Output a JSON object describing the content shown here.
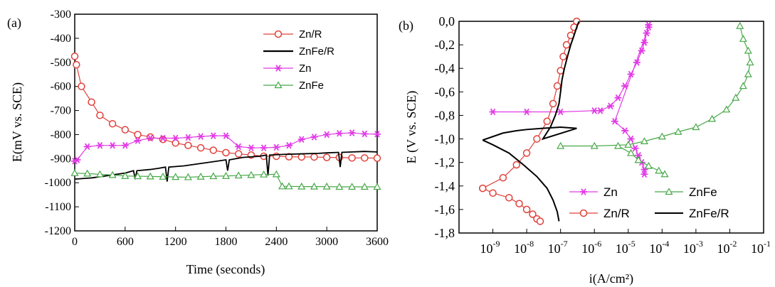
{
  "chart_data": [
    {
      "type": "line",
      "panel_label": "(a)",
      "xlabel": "Time (seconds)",
      "ylabel": "E(mV vs. SCE)",
      "xlim": [
        0,
        3600
      ],
      "ylim": [
        -1200,
        -300
      ],
      "xticks": [
        "0",
        "600",
        "1200",
        "1800",
        "2400",
        "3000",
        "3600"
      ],
      "yticks": [
        "-300",
        "-400",
        "-500",
        "-600",
        "-700",
        "-800",
        "-900",
        "-1000",
        "-1100",
        "-1200"
      ],
      "legend_position": "top-right",
      "series": [
        {
          "name": "Zn/R",
          "color": "#e0403a",
          "marker": "circle",
          "x": [
            0,
            20,
            80,
            200,
            300,
            450,
            600,
            750,
            900,
            1050,
            1200,
            1350,
            1500,
            1650,
            1800,
            1950,
            2100,
            2250,
            2400,
            2550,
            2700,
            2850,
            3000,
            3150,
            3300,
            3450,
            3600
          ],
          "y": [
            -475,
            -510,
            -600,
            -665,
            -720,
            -755,
            -780,
            -800,
            -810,
            -820,
            -835,
            -845,
            -855,
            -865,
            -875,
            -880,
            -885,
            -890,
            -890,
            -892,
            -893,
            -893,
            -895,
            -895,
            -897,
            -897,
            -898
          ]
        },
        {
          "name": "ZnFe/R",
          "color": "#000000",
          "marker": "none",
          "x": [
            0,
            200,
            400,
            600,
            700,
            720,
            740,
            900,
            1000,
            1080,
            1100,
            1120,
            1300,
            1500,
            1700,
            1800,
            1820,
            1840,
            2000,
            2200,
            2280,
            2300,
            2320,
            2500,
            2700,
            2900,
            3000,
            3140,
            3160,
            3180,
            3300,
            3450,
            3600
          ],
          "y": [
            -985,
            -980,
            -970,
            -960,
            -950,
            -985,
            -950,
            -945,
            -940,
            -935,
            -995,
            -935,
            -930,
            -920,
            -910,
            -905,
            -950,
            -905,
            -895,
            -890,
            -885,
            -970,
            -885,
            -882,
            -880,
            -878,
            -876,
            -874,
            -935,
            -874,
            -872,
            -870,
            -872
          ]
        },
        {
          "name": "Zn",
          "color": "#e23ae6",
          "marker": "asterisk",
          "x": [
            0,
            30,
            150,
            300,
            450,
            600,
            750,
            900,
            1050,
            1200,
            1350,
            1500,
            1650,
            1800,
            1950,
            2100,
            2250,
            2400,
            2550,
            2700,
            2850,
            3000,
            3150,
            3300,
            3450,
            3600
          ],
          "y": [
            -910,
            -905,
            -850,
            -845,
            -845,
            -845,
            -825,
            -815,
            -815,
            -815,
            -812,
            -808,
            -805,
            -805,
            -850,
            -855,
            -855,
            -853,
            -845,
            -820,
            -810,
            -800,
            -795,
            -793,
            -797,
            -798
          ]
        },
        {
          "name": "ZnFe",
          "color": "#46a847",
          "marker": "triangle",
          "x": [
            0,
            150,
            300,
            450,
            600,
            750,
            900,
            1050,
            1200,
            1350,
            1500,
            1650,
            1800,
            1950,
            2100,
            2250,
            2400,
            2470,
            2550,
            2700,
            2850,
            3000,
            3150,
            3300,
            3450,
            3600
          ],
          "y": [
            -960,
            -962,
            -965,
            -968,
            -972,
            -973,
            -974,
            -975,
            -976,
            -977,
            -975,
            -973,
            -972,
            -970,
            -968,
            -966,
            -965,
            -1015,
            -1015,
            -1016,
            -1016,
            -1016,
            -1017,
            -1017,
            -1017,
            -1017
          ]
        }
      ]
    },
    {
      "type": "line",
      "panel_label": "(b)",
      "xlabel": "i(A/cm²)",
      "ylabel": "E (V vs. SCE)",
      "xscale": "log",
      "xlim": [
        1e-10,
        0.1
      ],
      "ylim": [
        -1.8,
        0.0
      ],
      "xtick_exponents": [
        "-9",
        "-8",
        "-7",
        "-6",
        "-5",
        "-4",
        "-3",
        "-2",
        "-1"
      ],
      "xtick_base": "10",
      "yticks": [
        "0,0",
        "-0,2",
        "-0,4",
        "-0,6",
        "-0,8",
        "-1,0",
        "-1,2",
        "-1,4",
        "-1,6",
        "-1,8"
      ],
      "legend_position": "bottom",
      "series": [
        {
          "name": "Zn",
          "color": "#e23ae6",
          "marker": "asterisk",
          "x": [
            1e-09,
            1e-08,
            1e-07,
            1e-06,
            1.5e-06,
            3e-06,
            5e-06,
            8e-06,
            1.2e-05,
            1.8e-05,
            2.5e-05,
            3e-05,
            3.5e-05,
            4e-05,
            4e-05,
            4e-06,
            8e-06,
            1.2e-05,
            1.6e-05,
            2e-05,
            2.5e-05,
            3e-05,
            3e-05
          ],
          "y": [
            -0.77,
            -0.77,
            -0.77,
            -0.76,
            -0.76,
            -0.72,
            -0.65,
            -0.55,
            -0.45,
            -0.35,
            -0.25,
            -0.18,
            -0.1,
            -0.03,
            -0.05,
            -0.85,
            -0.93,
            -1.0,
            -1.08,
            -1.14,
            -1.2,
            -1.26,
            -1.3
          ]
        },
        {
          "name": "ZnFe",
          "color": "#46a847",
          "marker": "triangle",
          "x": [
            1e-07,
            1e-06,
            1e-05,
            3e-05,
            0.0001,
            0.0003,
            0.001,
            0.003,
            0.008,
            0.015,
            0.025,
            0.035,
            0.04,
            0.035,
            0.025,
            0.02,
            5e-06,
            1.2e-05,
            2e-05,
            4e-05,
            8e-05,
            0.00012
          ],
          "y": [
            -1.06,
            -1.06,
            -1.05,
            -1.02,
            -0.98,
            -0.94,
            -0.9,
            -0.83,
            -0.75,
            -0.65,
            -0.55,
            -0.45,
            -0.35,
            -0.25,
            -0.15,
            -0.04,
            -1.06,
            -1.12,
            -1.18,
            -1.23,
            -1.27,
            -1.3
          ]
        },
        {
          "name": "Zn/R",
          "color": "#e0403a",
          "marker": "circle",
          "x": [
            5e-10,
            2e-09,
            5e-09,
            1e-08,
            2e-08,
            4e-08,
            6e-08,
            8e-08,
            1e-07,
            1.2e-07,
            1.5e-07,
            2e-07,
            2.5e-07,
            3e-07,
            5e-10,
            1e-09,
            3e-09,
            6e-09,
            1e-08,
            1.5e-08,
            2e-08,
            2.5e-08
          ],
          "y": [
            -1.42,
            -1.33,
            -1.22,
            -1.12,
            -1.0,
            -0.85,
            -0.7,
            -0.55,
            -0.42,
            -0.3,
            -0.2,
            -0.12,
            -0.05,
            0.0,
            -1.42,
            -1.46,
            -1.5,
            -1.55,
            -1.6,
            -1.64,
            -1.68,
            -1.7
          ]
        },
        {
          "name": "ZnFe/R",
          "color": "#000000",
          "marker": "none",
          "x": [
            5e-10,
            1e-09,
            2e-09,
            5e-09,
            1e-08,
            3e-08,
            1e-07,
            3e-07,
            3e-08,
            5e-08,
            7e-08,
            9e-08,
            1e-07,
            1.1e-07,
            1.3e-07,
            1.6e-07,
            2e-07,
            2.5e-07,
            3e-07,
            3.5e-07,
            5e-10,
            1e-09,
            3e-09,
            8e-09,
            2e-08,
            4e-08,
            6e-08,
            8e-08,
            9e-08
          ],
          "y": [
            -1.01,
            -0.98,
            -0.95,
            -0.93,
            -0.92,
            -0.91,
            -0.9,
            -0.91,
            -1.0,
            -0.9,
            -0.8,
            -0.7,
            -0.6,
            -0.5,
            -0.4,
            -0.3,
            -0.2,
            -0.12,
            -0.05,
            0.0,
            -1.01,
            -1.05,
            -1.12,
            -1.22,
            -1.32,
            -1.42,
            -1.52,
            -1.62,
            -1.7
          ]
        }
      ]
    }
  ]
}
